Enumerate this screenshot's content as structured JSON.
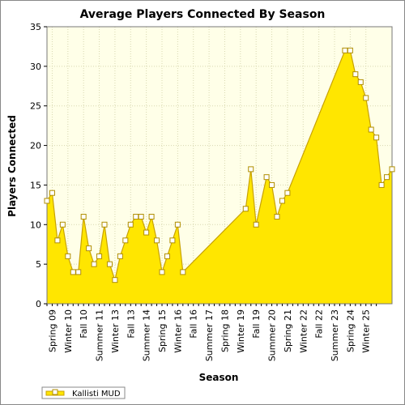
{
  "chart_data": {
    "type": "area",
    "title": "Average Players Connected By Season",
    "xlabel": "Season",
    "ylabel": "Players Connected",
    "ylim": [
      0,
      35
    ],
    "yticks": [
      0,
      5,
      10,
      15,
      20,
      25,
      30,
      35
    ],
    "grid": true,
    "legend_position": "bottom-left",
    "colors": {
      "fill": "#FFE600",
      "line": "#C8A200",
      "marker_fill": "#FFFFFF",
      "marker_stroke": "#B08E00",
      "plot_bg": "#FFFFE8",
      "grid": "#D8D8B0"
    },
    "tick_labels": [
      "Spring 09",
      "Winter 10",
      "Fall 10",
      "Summer 11",
      "Winter 13",
      "Fall 13",
      "Summer 14",
      "Spring 15",
      "Winter 16",
      "Fall 16",
      "Summer 17",
      "Spring 18",
      "Winter 19",
      "Fall 19",
      "Summer 20",
      "Spring 21",
      "Winter 22",
      "Fall 22",
      "Summer 23",
      "Spring 24",
      "Winter 25"
    ],
    "series": [
      {
        "name": "Kallisti MUD",
        "points": [
          {
            "x": 0,
            "y": 13
          },
          {
            "x": 0.5,
            "y": 14
          },
          {
            "x": 1,
            "y": 8
          },
          {
            "x": 1.5,
            "y": 10
          },
          {
            "x": 2,
            "y": 6
          },
          {
            "x": 2.5,
            "y": 4
          },
          {
            "x": 3,
            "y": 4
          },
          {
            "x": 3.5,
            "y": 11
          },
          {
            "x": 4,
            "y": 7
          },
          {
            "x": 4.5,
            "y": 5
          },
          {
            "x": 5,
            "y": 6
          },
          {
            "x": 5.5,
            "y": 10
          },
          {
            "x": 6,
            "y": 5
          },
          {
            "x": 6.5,
            "y": 3
          },
          {
            "x": 7,
            "y": 6
          },
          {
            "x": 7.5,
            "y": 8
          },
          {
            "x": 8,
            "y": 10
          },
          {
            "x": 8.5,
            "y": 11
          },
          {
            "x": 9,
            "y": 11
          },
          {
            "x": 9.5,
            "y": 9
          },
          {
            "x": 10,
            "y": 11
          },
          {
            "x": 10.5,
            "y": 8
          },
          {
            "x": 11,
            "y": 4
          },
          {
            "x": 11.5,
            "y": 6
          },
          {
            "x": 12,
            "y": 8
          },
          {
            "x": 12.5,
            "y": 10
          },
          {
            "x": 13,
            "y": 4
          },
          {
            "x": 19,
            "y": 12
          },
          {
            "x": 19.5,
            "y": 17
          },
          {
            "x": 20,
            "y": 10
          },
          {
            "x": 21,
            "y": 16
          },
          {
            "x": 21.5,
            "y": 15
          },
          {
            "x": 22,
            "y": 11
          },
          {
            "x": 22.5,
            "y": 13
          },
          {
            "x": 23,
            "y": 14
          },
          {
            "x": 28.5,
            "y": 32
          },
          {
            "x": 29,
            "y": 32
          },
          {
            "x": 29.5,
            "y": 29
          },
          {
            "x": 30,
            "y": 28
          },
          {
            "x": 30.5,
            "y": 26
          },
          {
            "x": 31,
            "y": 22
          },
          {
            "x": 31.5,
            "y": 21
          },
          {
            "x": 32,
            "y": 15
          },
          {
            "x": 32.5,
            "y": 16
          },
          {
            "x": 33,
            "y": 17
          }
        ]
      }
    ]
  }
}
